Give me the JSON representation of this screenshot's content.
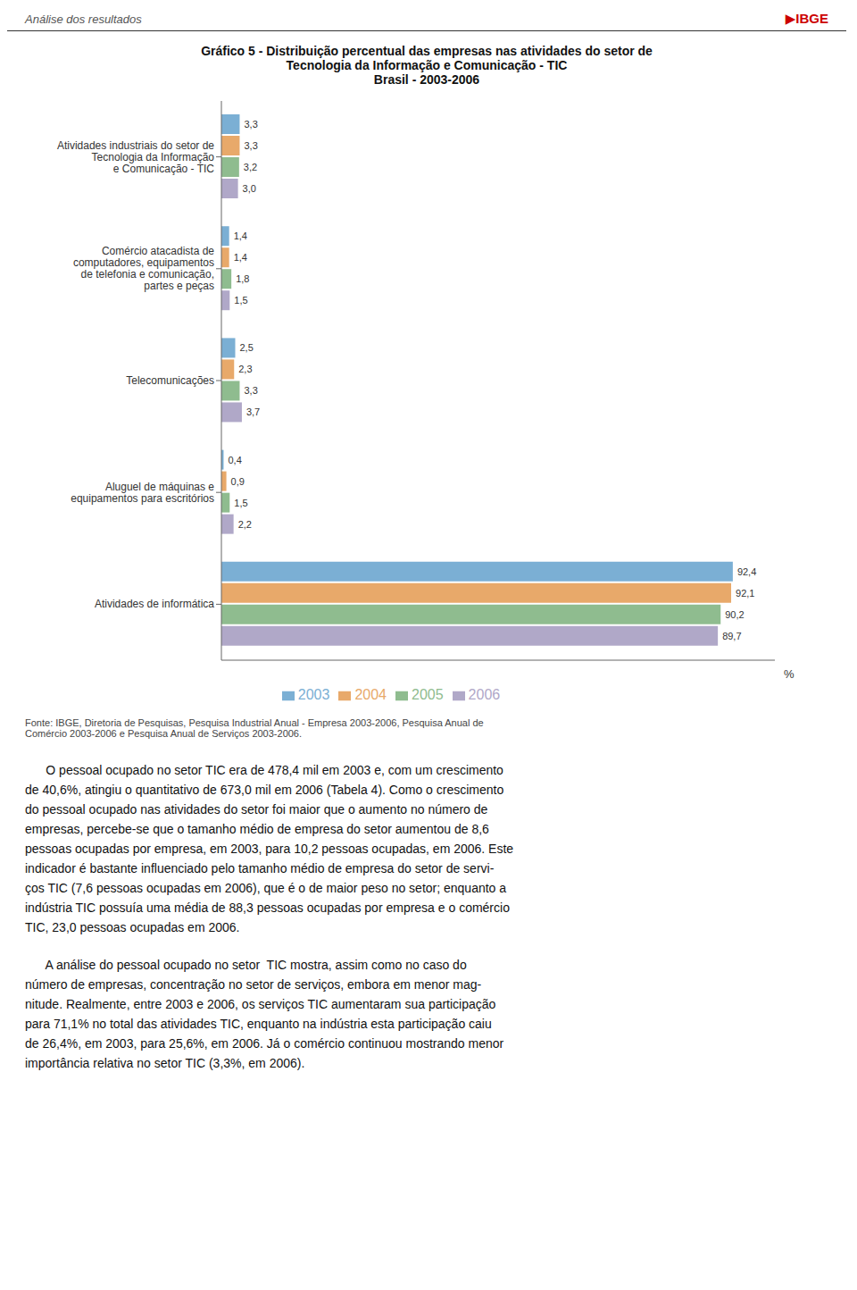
{
  "chart_data": {
    "type": "bar",
    "orientation": "horizontal",
    "title": "Gráfico 5 - Distribuição percentual das empresas nas atividades do setor de\nTecnologia da Informação e Comunicação - TIC\nBrasil - 2003-2006",
    "header": "Análise dos resultados",
    "logo": "▶IBGE",
    "x_label": "%",
    "categories": [
      "Atividades industriais do setor de\nTecnologia da Informação\ne Comunicação - TIC",
      "Comércio atacadista de\ncomputadores, equipamentos\nde telefonia e comunicação,\npartes e peças",
      "Telecomunicações",
      "Aluguel de máquinas e\nequipamentos para escritórios",
      "Atividades de informática"
    ],
    "series": [
      {
        "name": "2003",
        "color": "#7BAFD4",
        "values": [
          3.3,
          1.4,
          2.5,
          0.4,
          92.4
        ],
        "value_labels": [
          "3,3",
          "1,4",
          "2,5",
          "0,4",
          "92,4"
        ]
      },
      {
        "name": "2004",
        "color": "#E8A96A",
        "values": [
          3.3,
          1.4,
          2.3,
          0.9,
          92.1
        ],
        "value_labels": [
          "3,3",
          "1,4",
          "2,3",
          "0,9",
          "92,1"
        ]
      },
      {
        "name": "2005",
        "color": "#8FBC8F",
        "values": [
          3.2,
          1.8,
          3.3,
          1.5,
          90.2
        ],
        "value_labels": [
          "3,2",
          "1,8",
          "3,3",
          "1,5",
          "90,2"
        ]
      },
      {
        "name": "2006",
        "color": "#B0A8C8",
        "values": [
          3.0,
          1.5,
          3.7,
          2.2,
          89.7
        ],
        "value_labels": [
          "3,0",
          "1,5",
          "3,7",
          "2,2",
          "89,7"
        ]
      }
    ],
    "xlim": [
      0,
      100
    ],
    "tick_labels": "y",
    "grid": false,
    "legend": "bottom",
    "data_labels": true,
    "footer": "Fonte: IBGE, Diretoria de Pesquisas, Pesquisa Industrial Anual - Empresa 2003-2006, Pesquisa Anual de\nComércio 2003-2006 e Pesquisa Anual de Serviços 2003-2006.",
    "body": [
      [
        "      O pessoal ocupado no setor TIC era de 478,4 mil em 2003 e, com um crescimento",
        "de 40,6%, atingiu o quantitativo de 673,0 mil em 2006 (Tabela 4). Como o crescimento",
        "do pessoal ocupado nas atividades do setor foi maior que o aumento no número de",
        "empresas, percebe-se que o tamanho médio de empresa do setor aumentou de 8,6",
        "pessoas ocupadas por empresa, em 2003, para 10,2 pessoas ocupadas, em 2006. Este",
        "indicador é bastante influenciado pelo tamanho médio de empresa do setor de servi-",
        "ços TIC (7,6 pessoas ocupadas em 2006), que é o de maior peso no setor; enquanto a",
        "indústria TIC possuía uma média de 88,3 pessoas ocupadas por empresa e o comércio",
        "TIC, 23,0 pessoas ocupadas em 2006."
      ],
      [
        "      A análise do pessoal ocupado no setor  TIC mostra, assim como no caso do",
        "número de empresas, concentração no setor de serviços, embora em menor mag-",
        "nitude. Realmente, entre 2003 e 2006, os serviços TIC aumentaram sua participação",
        "para 71,1% no total das atividades TIC, enquanto na indústria esta participação caiu",
        "de 26,4%, em 2003, para 25,6%, em 2006. Já o comércio continuou mostrando menor",
        "importância relativa no setor TIC (3,3%, em 2006)."
      ]
    ]
  }
}
